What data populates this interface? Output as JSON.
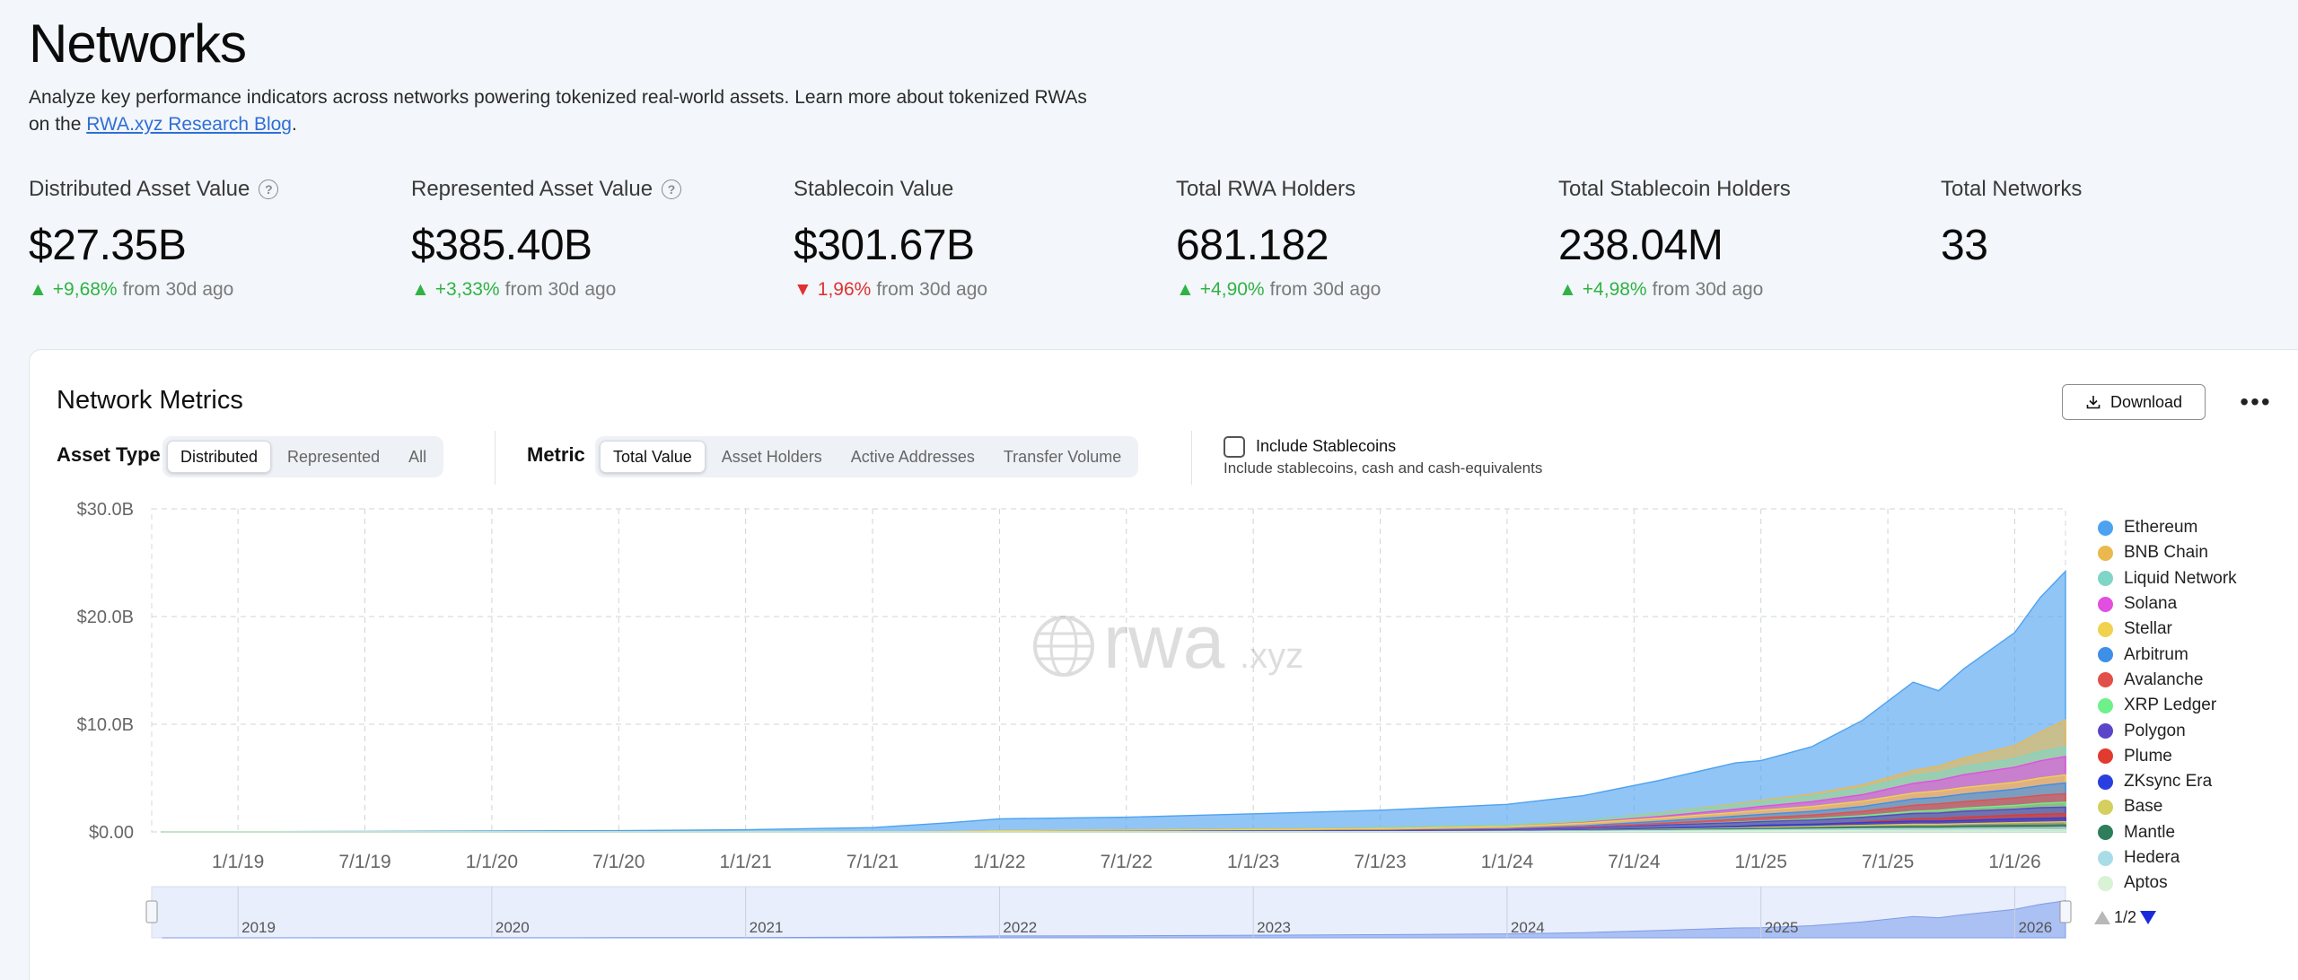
{
  "header": {
    "title": "Networks",
    "subtitle_text": "Analyze key performance indicators across networks powering tokenized real-world assets. Learn more about tokenized RWAs on the ",
    "link_text": "RWA.xyz Research Blog",
    "subtitle_end": "."
  },
  "kpis": [
    {
      "label": "Distributed Asset Value",
      "value": "$27.35B",
      "delta": "+9,68%",
      "direction": "up",
      "suffix": "from 30d ago",
      "help": true
    },
    {
      "label": "Represented Asset Value",
      "value": "$385.40B",
      "delta": "+3,33%",
      "direction": "up",
      "suffix": "from 30d ago",
      "help": true
    },
    {
      "label": "Stablecoin Value",
      "value": "$301.67B",
      "delta": "1,96%",
      "direction": "down",
      "suffix": "from 30d ago",
      "help": false
    },
    {
      "label": "Total RWA Holders",
      "value": "681.182",
      "delta": "+4,90%",
      "direction": "up",
      "suffix": "from 30d ago",
      "help": false
    },
    {
      "label": "Total Stablecoin Holders",
      "value": "238.04M",
      "delta": "+4,98%",
      "direction": "up",
      "suffix": "from 30d ago",
      "help": false
    },
    {
      "label": "Total Networks",
      "value": "33"
    }
  ],
  "metrics_card": {
    "title": "Network Metrics",
    "download_label": "Download",
    "more_label": "•••",
    "asset_type_label": "Asset Type",
    "asset_types": [
      "Distributed",
      "Represented",
      "All"
    ],
    "asset_type_selected": "Distributed",
    "metric_label": "Metric",
    "metrics": [
      "Total Value",
      "Asset Holders",
      "Active Addresses",
      "Transfer Volume"
    ],
    "metric_selected": "Total Value",
    "stablecoin_label": "Include Stablecoins",
    "stablecoin_sub": "Include stablecoins, cash and cash-equivalents",
    "pager": "1/2",
    "watermark": "rwa",
    "watermark_suffix": ".xyz"
  },
  "chart_data": {
    "type": "area",
    "stacked": true,
    "title": "Network Metrics",
    "ylabel": "",
    "xlabel": "",
    "ylim": [
      0,
      30
    ],
    "y_ticks": [
      "$0.00",
      "$10.0B",
      "$20.0B",
      "$30.0B"
    ],
    "y_tick_values": [
      0,
      10,
      20,
      30
    ],
    "x_ticks": [
      "1/1/19",
      "7/1/19",
      "1/1/20",
      "7/1/20",
      "1/1/21",
      "7/1/21",
      "1/1/22",
      "7/1/22",
      "1/1/23",
      "7/1/23",
      "1/1/24",
      "7/1/24",
      "1/1/25",
      "7/1/25",
      "1/1/26"
    ],
    "x_tick_values": [
      2019.0,
      2019.5,
      2020.0,
      2020.5,
      2021.0,
      2021.5,
      2022.0,
      2022.5,
      2023.0,
      2023.5,
      2024.0,
      2024.5,
      2025.0,
      2025.5,
      2026.0
    ],
    "xlim": [
      2018.66,
      2026.2
    ],
    "navigator_years": [
      "2019",
      "2020",
      "2021",
      "2022",
      "2023",
      "2024",
      "2025",
      "2026"
    ],
    "navigator_year_values": [
      2019,
      2020,
      2021,
      2022,
      2023,
      2024,
      2025,
      2026
    ],
    "x": [
      2018.7,
      2019.0,
      2019.5,
      2020.0,
      2020.5,
      2021.0,
      2021.5,
      2021.8,
      2022.0,
      2022.5,
      2023.0,
      2023.5,
      2024.0,
      2024.3,
      2024.6,
      2024.9,
      2025.0,
      2025.2,
      2025.4,
      2025.6,
      2025.7,
      2025.8,
      2026.0,
      2026.1,
      2026.2
    ],
    "series": [
      {
        "name": "Ethereum",
        "color": "#4da2f0",
        "values": [
          0.0,
          0.02,
          0.05,
          0.08,
          0.12,
          0.2,
          0.4,
          0.8,
          1.1,
          1.2,
          1.4,
          1.6,
          1.9,
          2.3,
          3.0,
          3.8,
          3.7,
          4.4,
          6.0,
          8.2,
          7.0,
          8.3,
          10.5,
          12.5,
          13.8
        ]
      },
      {
        "name": "BNB Chain",
        "color": "#eab94e",
        "values": [
          0,
          0,
          0,
          0,
          0,
          0,
          0,
          0,
          0,
          0,
          0,
          0,
          0,
          0,
          0.05,
          0.1,
          0.1,
          0.2,
          0.3,
          0.5,
          0.6,
          0.8,
          1.2,
          1.8,
          2.5
        ]
      },
      {
        "name": "Liquid Network",
        "color": "#7fd6c6",
        "values": [
          0,
          0,
          0,
          0,
          0,
          0,
          0,
          0,
          0,
          0,
          0.05,
          0.1,
          0.15,
          0.2,
          0.3,
          0.4,
          0.45,
          0.5,
          0.6,
          0.7,
          0.7,
          0.75,
          0.8,
          0.85,
          0.9
        ]
      },
      {
        "name": "Solana",
        "color": "#e24fe0",
        "values": [
          0,
          0,
          0,
          0,
          0,
          0,
          0,
          0,
          0,
          0,
          0,
          0,
          0,
          0.05,
          0.15,
          0.3,
          0.35,
          0.45,
          0.6,
          0.9,
          1.0,
          1.2,
          1.4,
          1.6,
          1.7
        ]
      },
      {
        "name": "Stellar",
        "color": "#f0d24f",
        "values": [
          0,
          0,
          0,
          0,
          0,
          0,
          0,
          0.05,
          0.1,
          0.12,
          0.15,
          0.18,
          0.2,
          0.25,
          0.3,
          0.35,
          0.4,
          0.45,
          0.5,
          0.55,
          0.6,
          0.6,
          0.65,
          0.7,
          0.75
        ]
      },
      {
        "name": "Arbitrum",
        "color": "#3d8fe8",
        "values": [
          0,
          0,
          0,
          0,
          0,
          0,
          0,
          0,
          0,
          0,
          0,
          0,
          0.05,
          0.1,
          0.2,
          0.3,
          0.3,
          0.35,
          0.45,
          0.6,
          0.6,
          0.7,
          0.8,
          0.9,
          1.0
        ]
      },
      {
        "name": "Avalanche",
        "color": "#e2504a",
        "values": [
          0,
          0,
          0,
          0,
          0,
          0,
          0,
          0,
          0,
          0,
          0,
          0.02,
          0.05,
          0.1,
          0.15,
          0.25,
          0.3,
          0.35,
          0.4,
          0.55,
          0.6,
          0.6,
          0.7,
          0.75,
          0.8
        ]
      },
      {
        "name": "XRP Ledger",
        "color": "#6ef08a",
        "values": [
          0,
          0,
          0,
          0,
          0,
          0,
          0,
          0,
          0,
          0,
          0,
          0,
          0,
          0,
          0,
          0.05,
          0.05,
          0.1,
          0.15,
          0.2,
          0.25,
          0.3,
          0.35,
          0.4,
          0.45
        ]
      },
      {
        "name": "Polygon",
        "color": "#5b45c9",
        "values": [
          0,
          0,
          0,
          0,
          0,
          0,
          0,
          0,
          0.02,
          0.05,
          0.08,
          0.1,
          0.15,
          0.2,
          0.3,
          0.35,
          0.35,
          0.4,
          0.45,
          0.5,
          0.5,
          0.55,
          0.55,
          0.6,
          0.6
        ]
      },
      {
        "name": "Plume",
        "color": "#e23a2f",
        "values": [
          0,
          0,
          0,
          0,
          0,
          0,
          0,
          0,
          0,
          0,
          0,
          0,
          0,
          0,
          0,
          0,
          0,
          0,
          0.05,
          0.2,
          0.25,
          0.3,
          0.35,
          0.4,
          0.4
        ]
      },
      {
        "name": "ZKsync Era",
        "color": "#2a3fe0",
        "values": [
          0,
          0,
          0,
          0,
          0,
          0,
          0,
          0,
          0,
          0,
          0,
          0,
          0.02,
          0.05,
          0.1,
          0.15,
          0.2,
          0.2,
          0.25,
          0.3,
          0.3,
          0.3,
          0.35,
          0.35,
          0.35
        ]
      },
      {
        "name": "Base",
        "color": "#d4cf5e",
        "values": [
          0,
          0,
          0,
          0,
          0,
          0,
          0,
          0,
          0,
          0,
          0,
          0,
          0,
          0.02,
          0.05,
          0.08,
          0.1,
          0.12,
          0.15,
          0.2,
          0.2,
          0.22,
          0.25,
          0.28,
          0.3
        ]
      },
      {
        "name": "Mantle",
        "color": "#2e7d5b",
        "values": [
          0,
          0,
          0,
          0,
          0,
          0,
          0,
          0,
          0,
          0,
          0,
          0,
          0,
          0.02,
          0.05,
          0.1,
          0.12,
          0.15,
          0.18,
          0.2,
          0.2,
          0.22,
          0.25,
          0.25,
          0.25
        ]
      },
      {
        "name": "Hedera",
        "color": "#a8dde8",
        "values": [
          0,
          0,
          0,
          0,
          0,
          0,
          0,
          0,
          0,
          0,
          0,
          0.02,
          0.04,
          0.06,
          0.08,
          0.1,
          0.1,
          0.12,
          0.14,
          0.15,
          0.15,
          0.16,
          0.18,
          0.18,
          0.2
        ]
      },
      {
        "name": "Aptos",
        "color": "#d9f2d6",
        "values": [
          0,
          0,
          0,
          0,
          0,
          0,
          0,
          0,
          0,
          0,
          0,
          0,
          0,
          0.02,
          0.05,
          0.08,
          0.1,
          0.12,
          0.14,
          0.16,
          0.16,
          0.17,
          0.18,
          0.19,
          0.2
        ]
      }
    ],
    "legend_position": "right"
  }
}
